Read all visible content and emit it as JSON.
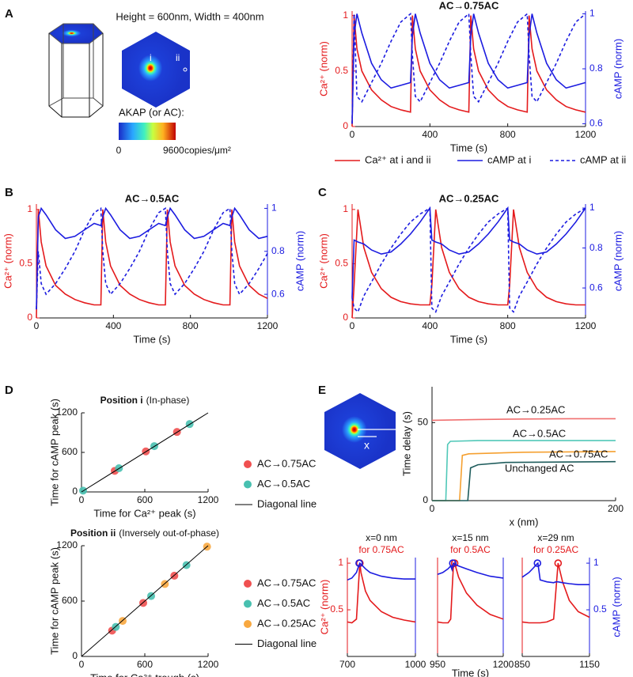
{
  "panel_labels": [
    "A",
    "B",
    "C",
    "D",
    "E"
  ],
  "panel_a": {
    "dimensions": "Height = 600nm, Width = 400nm",
    "points": [
      "i",
      "ii"
    ],
    "colorbar": {
      "title": "AKAP (or AC):",
      "ticks": [
        0,
        9600
      ],
      "unit": "copies/μm²"
    }
  },
  "panel_e_inset": {
    "label": "x"
  },
  "chart_data": [
    {
      "type": "line",
      "title": "AC→0.75AC",
      "xlabel": "Time (s)",
      "ylabel": "Ca²⁺ (norm)",
      "y2label": "cAMP (norm)",
      "x": [
        0,
        10,
        25,
        50,
        100,
        150,
        200,
        250,
        300,
        310,
        325,
        350,
        400,
        450,
        500,
        550,
        600,
        610,
        625,
        650,
        700,
        750,
        800,
        850,
        900,
        910,
        925,
        950,
        1000,
        1050,
        1100,
        1150,
        1200
      ],
      "xlim": [
        0,
        1200
      ],
      "xticks": [
        0,
        400,
        800,
        1200
      ],
      "ylim": [
        0,
        1.04
      ],
      "yticks": [
        0,
        0.5,
        1
      ],
      "y2lim": [
        0.59,
        1.01
      ],
      "y2ticks": [
        0.6,
        0.8,
        1
      ],
      "legend": "bottom",
      "series": [
        {
          "name": "Ca²⁺ at i and ii",
          "color": "#e41a1c",
          "values": [
            0,
            1,
            0.7,
            0.5,
            0.33,
            0.24,
            0.18,
            0.15,
            0.13,
            1,
            0.7,
            0.5,
            0.33,
            0.24,
            0.18,
            0.15,
            0.13,
            1,
            0.7,
            0.5,
            0.33,
            0.24,
            0.18,
            0.15,
            0.13,
            1,
            0.7,
            0.5,
            0.33,
            0.24,
            0.18,
            0.15,
            0.13
          ]
        },
        {
          "name": "cAMP at i",
          "color": "#1c1ce0",
          "axis": "y2",
          "values": [
            0.6,
            0.92,
            1,
            0.93,
            0.82,
            0.76,
            0.73,
            0.74,
            0.75,
            0.92,
            1,
            0.93,
            0.82,
            0.76,
            0.73,
            0.74,
            0.75,
            0.92,
            1,
            0.93,
            0.82,
            0.76,
            0.73,
            0.74,
            0.75,
            0.92,
            1,
            0.93,
            0.82,
            0.76,
            0.73,
            0.74,
            0.75
          ]
        },
        {
          "name": "cAMP at ii",
          "color": "#1c1ce0",
          "axis": "y2",
          "dashed": true,
          "values": [
            0.6,
            1,
            0.7,
            0.68,
            0.75,
            0.82,
            0.9,
            0.97,
            1,
            0.85,
            0.7,
            0.68,
            0.75,
            0.82,
            0.9,
            0.97,
            1,
            0.85,
            0.7,
            0.68,
            0.75,
            0.82,
            0.9,
            0.97,
            1,
            0.85,
            0.7,
            0.68,
            0.75,
            0.82,
            0.9,
            0.97,
            1
          ]
        }
      ]
    },
    {
      "type": "line",
      "title": "AC→0.5AC",
      "xlabel": "Time (s)",
      "ylabel": "Ca²⁺ (norm)",
      "y2label": "cAMP (norm)",
      "x": [
        0,
        10,
        25,
        50,
        100,
        150,
        200,
        250,
        300,
        335,
        345,
        360,
        385,
        435,
        485,
        535,
        585,
        635,
        670,
        680,
        695,
        720,
        770,
        820,
        870,
        920,
        970,
        1005,
        1015,
        1030,
        1055,
        1105,
        1155,
        1200
      ],
      "xlim": [
        0,
        1200
      ],
      "xticks": [
        0,
        400,
        800,
        1200
      ],
      "ylim": [
        0,
        1.05
      ],
      "yticks": [
        0,
        0.5,
        1
      ],
      "y2lim": [
        0.49,
        1.02
      ],
      "y2ticks": [
        0.6,
        0.8,
        1
      ],
      "series": [
        {
          "color": "#e41a1c",
          "values": [
            0,
            1,
            0.7,
            0.48,
            0.3,
            0.22,
            0.17,
            0.14,
            0.12,
            0.12,
            1,
            0.7,
            0.48,
            0.3,
            0.22,
            0.17,
            0.14,
            0.12,
            0.12,
            1,
            0.7,
            0.48,
            0.3,
            0.22,
            0.17,
            0.14,
            0.12,
            0.12,
            1,
            0.7,
            0.48,
            0.3,
            0.22,
            0.18
          ]
        },
        {
          "color": "#1c1ce0",
          "axis": "y2",
          "values": [
            0.53,
            0.96,
            1,
            0.97,
            0.9,
            0.86,
            0.87,
            0.9,
            0.93,
            0.92,
            0.96,
            1,
            0.97,
            0.9,
            0.86,
            0.87,
            0.9,
            0.93,
            0.92,
            0.96,
            1,
            0.97,
            0.9,
            0.86,
            0.87,
            0.9,
            0.93,
            0.92,
            0.96,
            1,
            0.97,
            0.9,
            0.86,
            0.87
          ]
        },
        {
          "color": "#1c1ce0",
          "axis": "y2",
          "dashed": true,
          "values": [
            0.53,
            0.8,
            0.65,
            0.6,
            0.65,
            0.72,
            0.8,
            0.9,
            0.98,
            1,
            0.8,
            0.65,
            0.6,
            0.65,
            0.72,
            0.8,
            0.9,
            0.98,
            1,
            0.8,
            0.65,
            0.6,
            0.65,
            0.72,
            0.8,
            0.9,
            0.98,
            1,
            0.8,
            0.65,
            0.6,
            0.65,
            0.72,
            0.79
          ]
        }
      ]
    },
    {
      "type": "line",
      "title": "AC→0.25AC",
      "xlabel": "Time (s)",
      "ylabel": "Ca²⁺ (norm)",
      "y2label": "cAMP (norm)",
      "x": [
        0,
        10,
        30,
        60,
        100,
        150,
        200,
        250,
        300,
        350,
        400,
        410,
        430,
        460,
        500,
        550,
        600,
        650,
        700,
        750,
        800,
        810,
        830,
        860,
        900,
        950,
        1000,
        1050,
        1100,
        1150,
        1200
      ],
      "xlim": [
        0,
        1200
      ],
      "xticks": [
        0,
        400,
        800,
        1200
      ],
      "ylim": [
        0,
        1.05
      ],
      "yticks": [
        0,
        0.5,
        1
      ],
      "y2lim": [
        0.45,
        1.02
      ],
      "y2ticks": [
        0.6,
        0.8,
        1
      ],
      "series": [
        {
          "color": "#e41a1c",
          "values": [
            0,
            0.3,
            1,
            0.65,
            0.42,
            0.27,
            0.19,
            0.15,
            0.13,
            0.12,
            0.12,
            0.3,
            1,
            0.65,
            0.42,
            0.27,
            0.19,
            0.15,
            0.13,
            0.12,
            0.12,
            0.3,
            1,
            0.65,
            0.42,
            0.27,
            0.19,
            0.15,
            0.13,
            0.12,
            0.12
          ]
        },
        {
          "color": "#1c1ce0",
          "axis": "y2",
          "values": [
            0.55,
            0.84,
            0.83,
            0.82,
            0.79,
            0.77,
            0.78,
            0.82,
            0.87,
            0.93,
            1,
            0.84,
            0.83,
            0.82,
            0.79,
            0.77,
            0.78,
            0.82,
            0.87,
            0.93,
            1,
            0.84,
            0.83,
            0.82,
            0.79,
            0.77,
            0.78,
            0.82,
            0.87,
            0.93,
            1
          ]
        },
        {
          "color": "#1c1ce0",
          "axis": "y2",
          "dashed": true,
          "values": [
            0.55,
            0.5,
            0.48,
            0.56,
            0.63,
            0.72,
            0.8,
            0.87,
            0.93,
            0.97,
            1,
            0.5,
            0.48,
            0.56,
            0.63,
            0.72,
            0.8,
            0.87,
            0.93,
            0.97,
            1,
            0.5,
            0.48,
            0.56,
            0.63,
            0.72,
            0.8,
            0.87,
            0.93,
            0.97,
            1
          ]
        }
      ]
    },
    {
      "type": "scatter",
      "title": "Position i",
      "title_note": "(In-phase)",
      "xlabel": "Time for Ca²⁺ peak (s)",
      "ylabel": "Time for cAMP peak (s)",
      "xlim": [
        0,
        1200
      ],
      "xticks": [
        0,
        600,
        1200
      ],
      "ylim": [
        0,
        1200
      ],
      "yticks": [
        0,
        600,
        1200
      ],
      "legend": "right",
      "series": [
        {
          "name": "AC→0.75AC",
          "color": "#f05050",
          "x": [
            315,
            610,
            905
          ],
          "values": [
            320,
            615,
            910
          ]
        },
        {
          "name": "AC→0.5AC",
          "color": "#48c0b0",
          "x": [
            15,
            355,
            690,
            1025
          ],
          "values": [
            20,
            360,
            695,
            1030
          ]
        },
        {
          "name": "Diagonal line",
          "type": "line",
          "color": "#000000",
          "x": [
            0,
            1200
          ],
          "values": [
            0,
            1200
          ]
        }
      ]
    },
    {
      "type": "scatter",
      "title": "Position ii",
      "title_note": "(Inversely out-of-phase)",
      "xlabel": "Time for Ca²⁺ trough (s)",
      "ylabel": "Time for cAMP peak (s)",
      "xlim": [
        0,
        1200
      ],
      "xticks": [
        0,
        600,
        1200
      ],
      "ylim": [
        0,
        1200
      ],
      "yticks": [
        0,
        600,
        1200
      ],
      "legend": "right",
      "series": [
        {
          "name": "AC→0.75AC",
          "color": "#f05050",
          "x": [
            290,
            585,
            880
          ],
          "values": [
            280,
            580,
            875
          ]
        },
        {
          "name": "AC→0.5AC",
          "color": "#48c0b0",
          "x": [
            325,
            660,
            995
          ],
          "values": [
            320,
            655,
            990
          ]
        },
        {
          "name": "AC→0.25AC",
          "color": "#f8a840",
          "x": [
            390,
            790,
            1190
          ],
          "values": [
            385,
            785,
            1190
          ]
        },
        {
          "name": "Diagonal line",
          "type": "line",
          "color": "#000000",
          "x": [
            0,
            1200
          ],
          "values": [
            0,
            1200
          ]
        }
      ]
    },
    {
      "type": "line",
      "xlabel": "x (nm)",
      "ylabel": "Time delay (s)",
      "xlim": [
        0,
        200
      ],
      "xticks": [
        0,
        200
      ],
      "ylim": [
        0,
        73
      ],
      "yticks": [
        0,
        50
      ],
      "legend": "inline",
      "series": [
        {
          "name": "AC→0.25AC",
          "color": "#f07070",
          "x": [
            0,
            50,
            100,
            150,
            200
          ],
          "values": [
            51.5,
            52,
            52.3,
            52.5,
            52.5
          ]
        },
        {
          "name": "AC→0.5AC",
          "color": "#50c8b8",
          "x": [
            0,
            15,
            17,
            20,
            50,
            100,
            200
          ],
          "values": [
            0,
            0,
            36,
            38,
            38.5,
            38.5,
            38.5
          ]
        },
        {
          "name": "AC→0.75AC",
          "color": "#f5a030",
          "x": [
            0,
            30,
            33,
            40,
            100,
            200
          ],
          "values": [
            0,
            0,
            29,
            30,
            31,
            31.5
          ]
        },
        {
          "name": "Unchanged AC",
          "color": "#1e5c5c",
          "x": [
            0,
            39,
            42,
            50,
            80,
            200
          ],
          "values": [
            0,
            0,
            21,
            23,
            24.5,
            25
          ]
        }
      ]
    },
    {
      "type": "line",
      "title": "x=0 nm",
      "subtitle": "for 0.75AC",
      "subtitle_color": "#e41a1c",
      "ylabel": "Ca²⁺ (norm)",
      "x": [
        700,
        720,
        740,
        750,
        755,
        760,
        780,
        800,
        850,
        900,
        950,
        1000
      ],
      "xlim": [
        700,
        1000
      ],
      "xticks": [
        700,
        1000
      ],
      "ylim": [
        0,
        1.06
      ],
      "yticks": [
        0.5,
        1
      ],
      "y2lim": [
        0,
        1.06
      ],
      "series": [
        {
          "color": "#e41a1c",
          "values": [
            0.37,
            0.36,
            0.4,
            0.8,
            1,
            0.9,
            0.7,
            0.6,
            0.48,
            0.42,
            0.39,
            0.37
          ],
          "peak": {
            "x": 755,
            "y": 1
          }
        },
        {
          "color": "#1c1ce0",
          "axis": "y2",
          "values": [
            0.82,
            0.84,
            0.9,
            0.97,
            1,
            0.99,
            0.94,
            0.9,
            0.86,
            0.84,
            0.83,
            0.83
          ],
          "peak": {
            "x": 752,
            "y": 1
          }
        }
      ]
    },
    {
      "type": "line",
      "title": "x=15 nm",
      "subtitle": "for 0.5AC",
      "subtitle_color": "#e41a1c",
      "xlabel": "Time (s)",
      "x": [
        950,
        970,
        990,
        1000,
        1005,
        1010,
        1015,
        1030,
        1060,
        1100,
        1150,
        1200
      ],
      "xlim": [
        950,
        1200
      ],
      "xticks": [
        950,
        1200
      ],
      "ylim": [
        0,
        1.06
      ],
      "y2lim": [
        0,
        1.06
      ],
      "series": [
        {
          "color": "#e41a1c",
          "values": [
            0.37,
            0.36,
            0.36,
            0.4,
            0.7,
            0.95,
            1,
            0.85,
            0.68,
            0.55,
            0.45,
            0.4
          ],
          "peak": {
            "x": 1015,
            "y": 1
          }
        },
        {
          "color": "#1c1ce0",
          "axis": "y2",
          "values": [
            0.88,
            0.9,
            0.94,
            0.97,
            0.93,
            1,
            0.99,
            0.97,
            0.94,
            0.9,
            0.86,
            0.84
          ],
          "peak": {
            "x": 1008,
            "y": 1
          }
        }
      ]
    },
    {
      "type": "line",
      "title": "x=29 nm",
      "subtitle": "for 0.25AC",
      "subtitle_color": "#e41a1c",
      "y2label": "cAMP (norm)",
      "x": [
        850,
        880,
        900,
        915,
        920,
        930,
        960,
        990,
        1000,
        1010,
        1030,
        1060,
        1100,
        1150
      ],
      "xlim": [
        850,
        1150
      ],
      "xticks": [
        850,
        1150
      ],
      "ylim": [
        0,
        1.06
      ],
      "y2lim": [
        0,
        1.06
      ],
      "y2ticks": [
        0.5,
        1
      ],
      "series": [
        {
          "color": "#e41a1c",
          "values": [
            0.37,
            0.36,
            0.36,
            0.36,
            0.36,
            0.36,
            0.37,
            0.4,
            0.7,
            1,
            0.8,
            0.6,
            0.48,
            0.42
          ],
          "peak": {
            "x": 1010,
            "y": 1
          }
        },
        {
          "color": "#1c1ce0",
          "axis": "y2",
          "values": [
            0.85,
            0.9,
            0.95,
            0.99,
            1,
            0.82,
            0.8,
            0.79,
            0.8,
            0.8,
            0.79,
            0.78,
            0.77,
            0.77
          ],
          "peak": {
            "x": 918,
            "y": 1
          }
        }
      ]
    }
  ]
}
